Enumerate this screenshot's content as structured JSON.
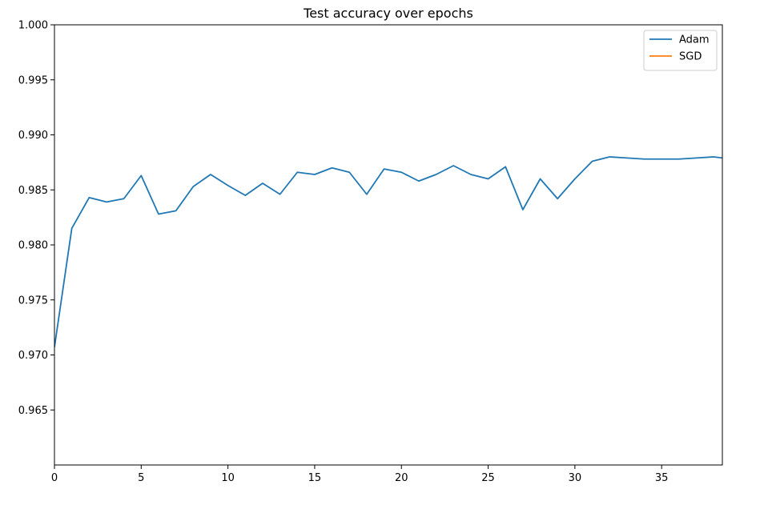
{
  "chart_data": {
    "type": "line",
    "title": "Test accuracy over epochs",
    "xlabel": "",
    "ylabel": "",
    "xlim": [
      0,
      38.5
    ],
    "ylim": [
      0.96,
      1.0
    ],
    "xticks": [
      0,
      5,
      10,
      15,
      20,
      25,
      30,
      35
    ],
    "xtick_labels": [
      "0",
      "5",
      "10",
      "15",
      "20",
      "25",
      "30",
      "35"
    ],
    "yticks": [
      0.965,
      0.97,
      0.975,
      0.98,
      0.985,
      0.99,
      0.995,
      1.0
    ],
    "ytick_labels": [
      "0.965",
      "0.970",
      "0.975",
      "0.980",
      "0.985",
      "0.990",
      "0.995",
      "1.000"
    ],
    "grid": false,
    "legend_position": "top-right",
    "series": [
      {
        "name": "Adam",
        "color": "#1f77b4",
        "x": [
          0,
          1,
          2,
          3,
          4,
          5,
          6,
          7,
          8,
          9,
          10,
          11,
          12,
          13,
          14,
          15,
          16,
          17,
          18,
          19,
          20,
          21,
          22,
          23,
          24,
          25,
          26,
          27,
          28,
          29,
          30,
          31,
          32,
          33,
          34,
          35,
          36,
          37,
          38,
          38.5
        ],
        "values": [
          0.9707,
          0.9815,
          0.9843,
          0.9839,
          0.9842,
          0.9863,
          0.9828,
          0.9831,
          0.9853,
          0.9864,
          0.9854,
          0.9845,
          0.9856,
          0.9846,
          0.9866,
          0.9864,
          0.987,
          0.9866,
          0.9846,
          0.9869,
          0.9866,
          0.9858,
          0.9864,
          0.9872,
          0.9864,
          0.986,
          0.9871,
          0.9832,
          0.986,
          0.9842,
          0.986,
          0.9876,
          0.988,
          0.9879,
          0.9878,
          0.9878,
          0.9878,
          0.9879,
          0.988,
          0.9879
        ]
      },
      {
        "name": "SGD",
        "color": "#ff7f0e",
        "x": [],
        "values": []
      }
    ]
  }
}
